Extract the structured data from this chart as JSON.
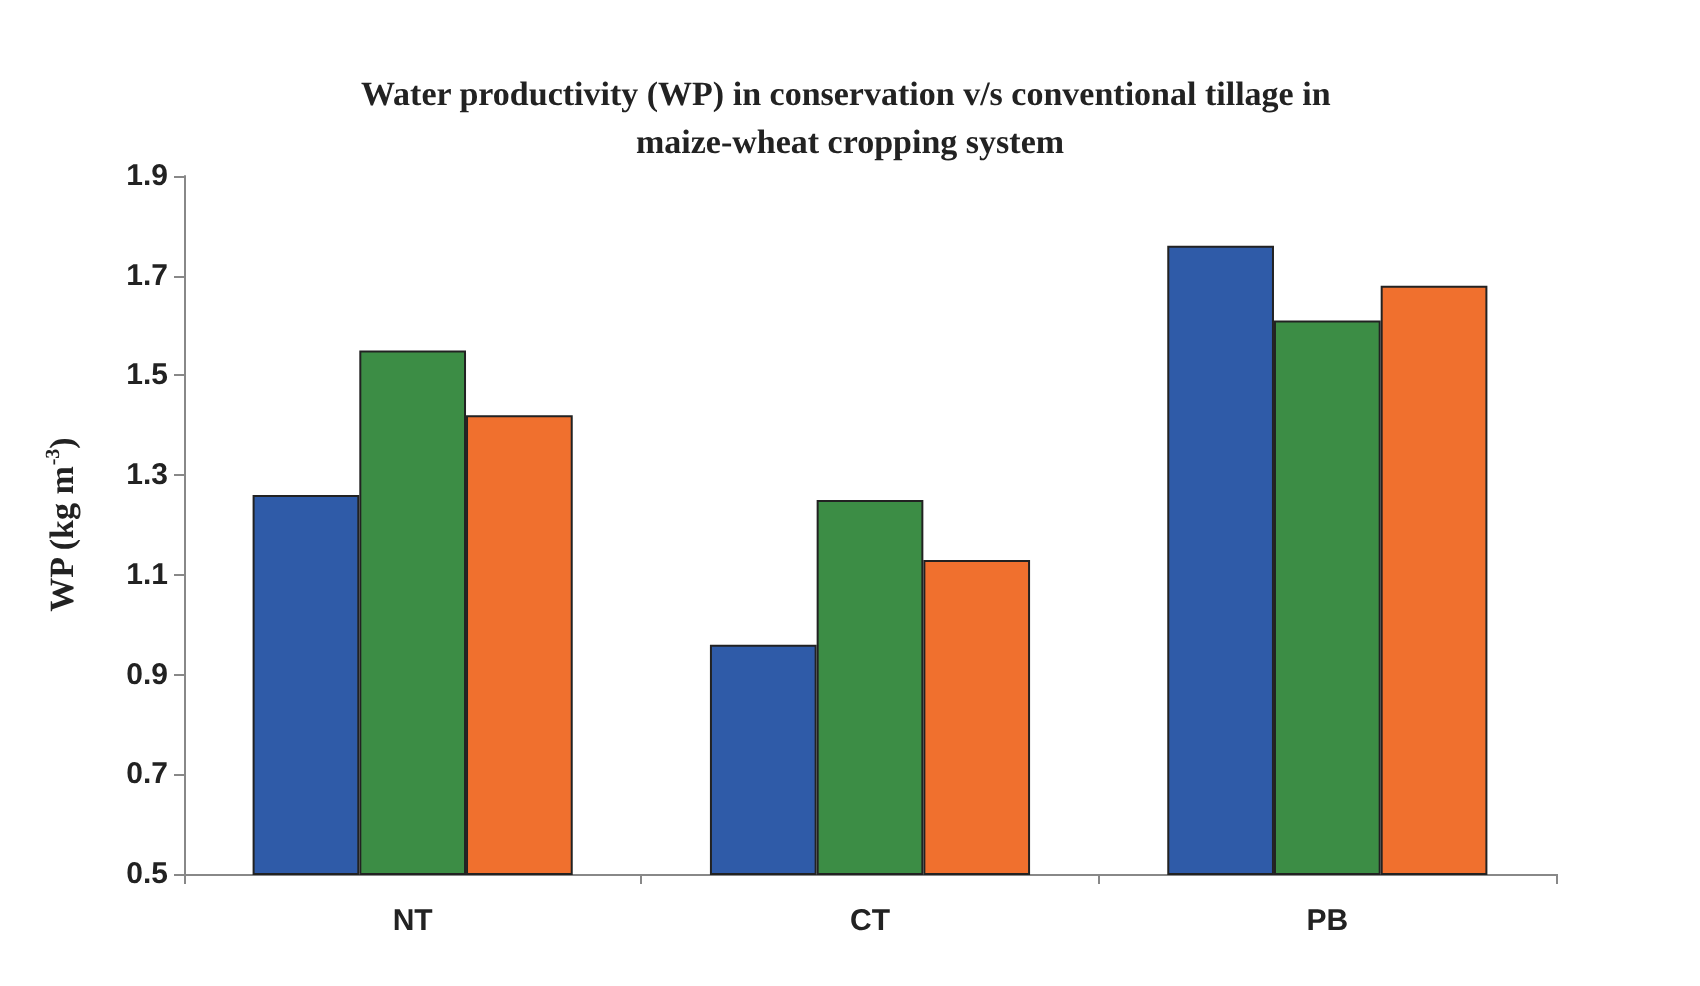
{
  "chart_data": {
    "type": "bar",
    "title": "Water productivity (WP) in conservation v/s conventional tillage in maize-wheat cropping system",
    "ylabel": "WP (kg m$^{-3}$)",
    "categories": [
      "NT",
      "CT",
      "PB"
    ],
    "series": [
      {
        "color": "#2f5ba8",
        "values": [
          1.26,
          0.96,
          1.76
        ]
      },
      {
        "color": "#3c8d45",
        "values": [
          1.55,
          1.25,
          1.61
        ]
      },
      {
        "color": "#f0702e",
        "values": [
          1.42,
          1.13,
          1.68
        ]
      }
    ],
    "ylim": [
      0.5,
      1.9
    ],
    "yticks": [
      0.5,
      0.7,
      0.9,
      1.1,
      1.3,
      1.5,
      1.7,
      1.9
    ],
    "grid": false
  }
}
